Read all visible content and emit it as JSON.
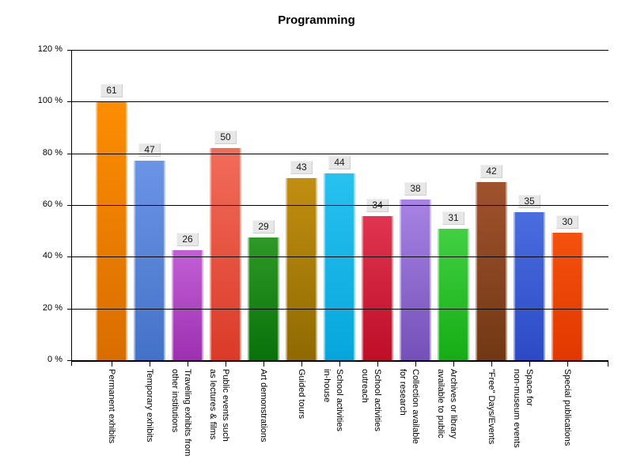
{
  "chart_data": {
    "type": "bar",
    "title": "Programming",
    "xlabel": "",
    "ylabel": "",
    "y_axis": {
      "unit": "%",
      "min": 0,
      "max": 120,
      "tick_step": 20,
      "ticks_top_to_bottom": [
        "120 %",
        "100 %",
        "80 %",
        "60 %",
        "40 %",
        "20 %",
        "0 %"
      ],
      "gridlines": true
    },
    "value_at_100_percent": 61,
    "categories": [
      "Permanent exhibits",
      "Temporary exhibits",
      "Traveling exhibits from other institutions",
      "Public events such as lectures & films",
      "Art demonstrations",
      "Guided tours",
      "School activities in-house",
      "School activities outreach",
      "Collection available for research",
      "Archives or library available to public",
      "\"Free\" Days/Events",
      "Space for non-museum events",
      "Special publications"
    ],
    "values": [
      61,
      47,
      26,
      50,
      29,
      43,
      44,
      34,
      38,
      31,
      42,
      35,
      30
    ],
    "value_label_style": {
      "background": "#E7E7E7",
      "text_color": "#1a1a1a"
    },
    "bars": [
      {
        "label_lines": [
          "Permanent exhibits"
        ],
        "value": 61,
        "color_top": "#FD8D02",
        "color_bottom": "#D96D01"
      },
      {
        "label_lines": [
          "Temporary exhibits"
        ],
        "value": 47,
        "color_top": "#6B94E6",
        "color_bottom": "#4472C8"
      },
      {
        "label_lines": [
          "Traveling exhibits from",
          "other institutions"
        ],
        "value": 26,
        "color_top": "#C25FD6",
        "color_bottom": "#9D30B1"
      },
      {
        "label_lines": [
          "Public events such",
          "as lectures & films"
        ],
        "value": 50,
        "color_top": "#F26C5A",
        "color_bottom": "#DB3A28"
      },
      {
        "label_lines": [
          "Art demonstrations"
        ],
        "value": 29,
        "color_top": "#2E9926",
        "color_bottom": "#097109"
      },
      {
        "label_lines": [
          "Guided tours"
        ],
        "value": 43,
        "color_top": "#C18E10",
        "color_bottom": "#8F6A02"
      },
      {
        "label_lines": [
          "School activities",
          "in-house"
        ],
        "value": 44,
        "color_top": "#28C1F0",
        "color_bottom": "#06A6DC"
      },
      {
        "label_lines": [
          "School activities",
          "outreach"
        ],
        "value": 34,
        "color_top": "#E03450",
        "color_bottom": "#BE0E28"
      },
      {
        "label_lines": [
          "Collection available",
          "for research"
        ],
        "value": 38,
        "color_top": "#A883E5",
        "color_bottom": "#7450B8"
      },
      {
        "label_lines": [
          "Archives or library",
          "available to public"
        ],
        "value": 31,
        "color_top": "#42D042",
        "color_bottom": "#15AD15"
      },
      {
        "label_lines": [
          "\"Free\" Days/Events"
        ],
        "value": 42,
        "color_top": "#A0522D",
        "color_bottom": "#713814"
      },
      {
        "label_lines": [
          "Space for",
          "non-museum events"
        ],
        "value": 35,
        "color_top": "#4A6DDF",
        "color_bottom": "#2C4AC5"
      },
      {
        "label_lines": [
          "Special publications"
        ],
        "value": 30,
        "color_top": "#F4510E",
        "color_bottom": "#E23800"
      }
    ]
  }
}
